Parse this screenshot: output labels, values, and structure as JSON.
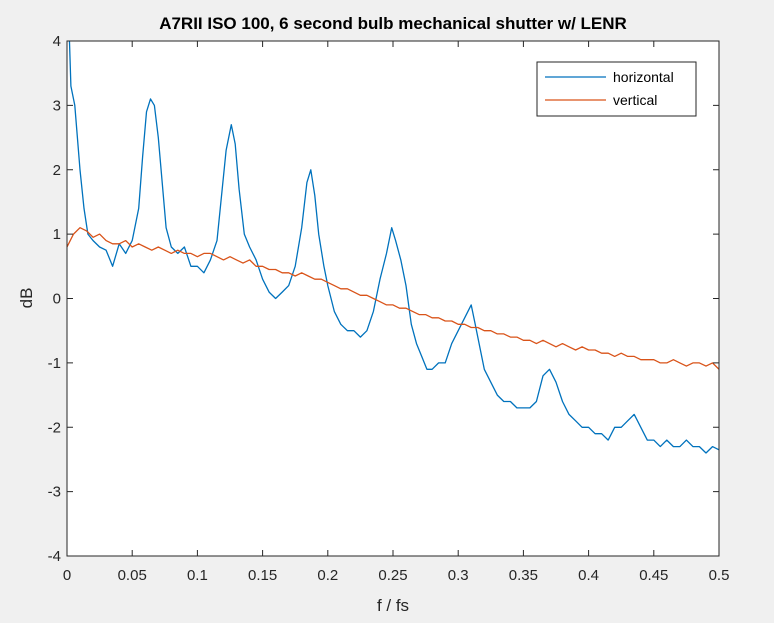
{
  "chart_data": {
    "type": "line",
    "title": "A7RII ISO 100, 6 second bulb mechanical shutter w/ LENR",
    "xlabel": "f / fs",
    "ylabel": "dB",
    "xlim": [
      0,
      0.5
    ],
    "ylim": [
      -4,
      4
    ],
    "x_ticks": [
      "0",
      "0.05",
      "0.1",
      "0.15",
      "0.2",
      "0.25",
      "0.3",
      "0.35",
      "0.4",
      "0.45",
      "0.5"
    ],
    "x_tick_values": [
      0,
      0.05,
      0.1,
      0.15,
      0.2,
      0.25,
      0.3,
      0.35,
      0.4,
      0.45,
      0.5
    ],
    "y_ticks": [
      "4",
      "3",
      "2",
      "1",
      "0",
      "-1",
      "-2",
      "-3",
      "-4"
    ],
    "y_tick_values": [
      4,
      3,
      2,
      1,
      0,
      -1,
      -2,
      -3,
      -4
    ],
    "grid": false,
    "legend_position": "top-right",
    "series": [
      {
        "name": "horizontal",
        "color": "#0072bd",
        "points": [
          [
            0.0,
            5.2
          ],
          [
            0.003,
            3.3
          ],
          [
            0.006,
            3.0
          ],
          [
            0.01,
            2.0
          ],
          [
            0.013,
            1.4
          ],
          [
            0.016,
            1.0
          ],
          [
            0.02,
            0.9
          ],
          [
            0.025,
            0.8
          ],
          [
            0.03,
            0.75
          ],
          [
            0.035,
            0.5
          ],
          [
            0.04,
            0.85
          ],
          [
            0.045,
            0.7
          ],
          [
            0.05,
            0.9
          ],
          [
            0.055,
            1.4
          ],
          [
            0.058,
            2.2
          ],
          [
            0.061,
            2.9
          ],
          [
            0.064,
            3.1
          ],
          [
            0.067,
            3.0
          ],
          [
            0.07,
            2.5
          ],
          [
            0.073,
            1.8
          ],
          [
            0.076,
            1.1
          ],
          [
            0.08,
            0.8
          ],
          [
            0.085,
            0.7
          ],
          [
            0.09,
            0.8
          ],
          [
            0.095,
            0.5
          ],
          [
            0.1,
            0.5
          ],
          [
            0.105,
            0.4
          ],
          [
            0.11,
            0.6
          ],
          [
            0.115,
            0.9
          ],
          [
            0.119,
            1.7
          ],
          [
            0.122,
            2.3
          ],
          [
            0.126,
            2.7
          ],
          [
            0.129,
            2.4
          ],
          [
            0.132,
            1.7
          ],
          [
            0.136,
            1.0
          ],
          [
            0.14,
            0.8
          ],
          [
            0.145,
            0.6
          ],
          [
            0.15,
            0.3
          ],
          [
            0.155,
            0.1
          ],
          [
            0.16,
            0.0
          ],
          [
            0.165,
            0.1
          ],
          [
            0.17,
            0.2
          ],
          [
            0.175,
            0.5
          ],
          [
            0.18,
            1.1
          ],
          [
            0.184,
            1.8
          ],
          [
            0.187,
            2.0
          ],
          [
            0.19,
            1.6
          ],
          [
            0.193,
            1.0
          ],
          [
            0.197,
            0.5
          ],
          [
            0.2,
            0.2
          ],
          [
            0.205,
            -0.2
          ],
          [
            0.21,
            -0.4
          ],
          [
            0.215,
            -0.5
          ],
          [
            0.22,
            -0.5
          ],
          [
            0.225,
            -0.6
          ],
          [
            0.23,
            -0.5
          ],
          [
            0.235,
            -0.2
          ],
          [
            0.24,
            0.3
          ],
          [
            0.245,
            0.7
          ],
          [
            0.249,
            1.1
          ],
          [
            0.252,
            0.9
          ],
          [
            0.256,
            0.6
          ],
          [
            0.26,
            0.2
          ],
          [
            0.264,
            -0.4
          ],
          [
            0.268,
            -0.7
          ],
          [
            0.272,
            -0.9
          ],
          [
            0.276,
            -1.1
          ],
          [
            0.28,
            -1.1
          ],
          [
            0.285,
            -1.0
          ],
          [
            0.29,
            -1.0
          ],
          [
            0.295,
            -0.7
          ],
          [
            0.3,
            -0.5
          ],
          [
            0.305,
            -0.3
          ],
          [
            0.31,
            -0.1
          ],
          [
            0.313,
            -0.4
          ],
          [
            0.317,
            -0.8
          ],
          [
            0.32,
            -1.1
          ],
          [
            0.325,
            -1.3
          ],
          [
            0.33,
            -1.5
          ],
          [
            0.335,
            -1.6
          ],
          [
            0.34,
            -1.6
          ],
          [
            0.345,
            -1.7
          ],
          [
            0.35,
            -1.7
          ],
          [
            0.355,
            -1.7
          ],
          [
            0.36,
            -1.6
          ],
          [
            0.365,
            -1.2
          ],
          [
            0.37,
            -1.1
          ],
          [
            0.375,
            -1.3
          ],
          [
            0.38,
            -1.6
          ],
          [
            0.385,
            -1.8
          ],
          [
            0.39,
            -1.9
          ],
          [
            0.395,
            -2.0
          ],
          [
            0.4,
            -2.0
          ],
          [
            0.405,
            -2.1
          ],
          [
            0.41,
            -2.1
          ],
          [
            0.415,
            -2.2
          ],
          [
            0.42,
            -2.0
          ],
          [
            0.425,
            -2.0
          ],
          [
            0.43,
            -1.9
          ],
          [
            0.435,
            -1.8
          ],
          [
            0.44,
            -2.0
          ],
          [
            0.445,
            -2.2
          ],
          [
            0.45,
            -2.2
          ],
          [
            0.455,
            -2.3
          ],
          [
            0.46,
            -2.2
          ],
          [
            0.465,
            -2.3
          ],
          [
            0.47,
            -2.3
          ],
          [
            0.475,
            -2.2
          ],
          [
            0.48,
            -2.3
          ],
          [
            0.485,
            -2.3
          ],
          [
            0.49,
            -2.4
          ],
          [
            0.495,
            -2.3
          ],
          [
            0.5,
            -2.35
          ]
        ]
      },
      {
        "name": "vertical",
        "color": "#d95319",
        "points": [
          [
            0.0,
            0.8
          ],
          [
            0.005,
            1.0
          ],
          [
            0.01,
            1.1
          ],
          [
            0.015,
            1.05
          ],
          [
            0.02,
            0.95
          ],
          [
            0.025,
            1.0
          ],
          [
            0.03,
            0.9
          ],
          [
            0.035,
            0.85
          ],
          [
            0.04,
            0.85
          ],
          [
            0.045,
            0.9
          ],
          [
            0.05,
            0.8
          ],
          [
            0.055,
            0.85
          ],
          [
            0.06,
            0.8
          ],
          [
            0.065,
            0.75
          ],
          [
            0.07,
            0.8
          ],
          [
            0.075,
            0.75
          ],
          [
            0.08,
            0.7
          ],
          [
            0.085,
            0.75
          ],
          [
            0.09,
            0.7
          ],
          [
            0.095,
            0.7
          ],
          [
            0.1,
            0.65
          ],
          [
            0.105,
            0.7
          ],
          [
            0.11,
            0.7
          ],
          [
            0.115,
            0.65
          ],
          [
            0.12,
            0.6
          ],
          [
            0.125,
            0.65
          ],
          [
            0.13,
            0.6
          ],
          [
            0.135,
            0.55
          ],
          [
            0.14,
            0.6
          ],
          [
            0.145,
            0.5
          ],
          [
            0.15,
            0.5
          ],
          [
            0.155,
            0.45
          ],
          [
            0.16,
            0.45
          ],
          [
            0.165,
            0.4
          ],
          [
            0.17,
            0.4
          ],
          [
            0.175,
            0.35
          ],
          [
            0.18,
            0.4
          ],
          [
            0.185,
            0.35
          ],
          [
            0.19,
            0.3
          ],
          [
            0.195,
            0.3
          ],
          [
            0.2,
            0.25
          ],
          [
            0.205,
            0.2
          ],
          [
            0.21,
            0.15
          ],
          [
            0.215,
            0.15
          ],
          [
            0.22,
            0.1
          ],
          [
            0.225,
            0.05
          ],
          [
            0.23,
            0.05
          ],
          [
            0.235,
            0.0
          ],
          [
            0.24,
            -0.05
          ],
          [
            0.245,
            -0.1
          ],
          [
            0.25,
            -0.1
          ],
          [
            0.255,
            -0.15
          ],
          [
            0.26,
            -0.15
          ],
          [
            0.265,
            -0.2
          ],
          [
            0.27,
            -0.25
          ],
          [
            0.275,
            -0.25
          ],
          [
            0.28,
            -0.3
          ],
          [
            0.285,
            -0.3
          ],
          [
            0.29,
            -0.35
          ],
          [
            0.295,
            -0.35
          ],
          [
            0.3,
            -0.4
          ],
          [
            0.305,
            -0.4
          ],
          [
            0.31,
            -0.45
          ],
          [
            0.315,
            -0.45
          ],
          [
            0.32,
            -0.5
          ],
          [
            0.325,
            -0.5
          ],
          [
            0.33,
            -0.55
          ],
          [
            0.335,
            -0.55
          ],
          [
            0.34,
            -0.6
          ],
          [
            0.345,
            -0.6
          ],
          [
            0.35,
            -0.65
          ],
          [
            0.355,
            -0.65
          ],
          [
            0.36,
            -0.7
          ],
          [
            0.365,
            -0.65
          ],
          [
            0.37,
            -0.7
          ],
          [
            0.375,
            -0.75
          ],
          [
            0.38,
            -0.7
          ],
          [
            0.385,
            -0.75
          ],
          [
            0.39,
            -0.8
          ],
          [
            0.395,
            -0.75
          ],
          [
            0.4,
            -0.8
          ],
          [
            0.405,
            -0.8
          ],
          [
            0.41,
            -0.85
          ],
          [
            0.415,
            -0.85
          ],
          [
            0.42,
            -0.9
          ],
          [
            0.425,
            -0.85
          ],
          [
            0.43,
            -0.9
          ],
          [
            0.435,
            -0.9
          ],
          [
            0.44,
            -0.95
          ],
          [
            0.445,
            -0.95
          ],
          [
            0.45,
            -0.95
          ],
          [
            0.455,
            -1.0
          ],
          [
            0.46,
            -1.0
          ],
          [
            0.465,
            -0.95
          ],
          [
            0.47,
            -1.0
          ],
          [
            0.475,
            -1.05
          ],
          [
            0.48,
            -1.0
          ],
          [
            0.485,
            -1.0
          ],
          [
            0.49,
            -1.05
          ],
          [
            0.495,
            -1.0
          ],
          [
            0.5,
            -1.1
          ]
        ]
      }
    ]
  }
}
